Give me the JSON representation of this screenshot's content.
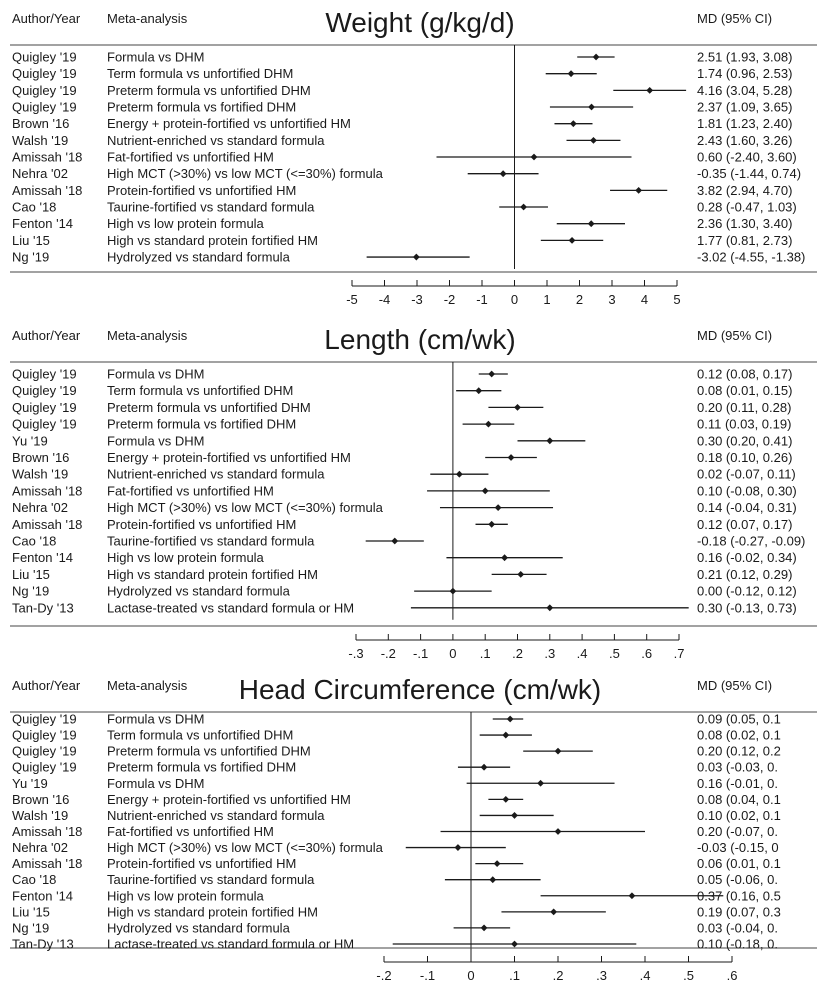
{
  "colors": {
    "ink": "#1a1a1a",
    "rule": "#444444"
  },
  "chart_data": [
    {
      "type": "forest",
      "title": "Weight (g/kg/d)",
      "col_author": "Author/Year",
      "col_analysis": "Meta-analysis",
      "col_effect": "MD (95% CI)",
      "xlim": [
        -5,
        5
      ],
      "ticks": [
        -5,
        -4,
        -3,
        -2,
        -1,
        0,
        1,
        2,
        3,
        4,
        5
      ],
      "tick_labels": [
        "-5",
        "-4",
        "-3",
        "-2",
        "-1",
        "0",
        "1",
        "2",
        "3",
        "4",
        "5"
      ],
      "rows": [
        {
          "author": "Quigley '19",
          "analysis": "Formula vs DHM",
          "md": 2.51,
          "lo": 1.93,
          "hi": 3.08,
          "label": "2.51 (1.93, 3.08)"
        },
        {
          "author": "Quigley '19",
          "analysis": "Term formula vs unfortified DHM",
          "md": 1.74,
          "lo": 0.96,
          "hi": 2.53,
          "label": "1.74 (0.96, 2.53)"
        },
        {
          "author": "Quigley '19",
          "analysis": "Preterm formula vs unfortified DHM",
          "md": 4.16,
          "lo": 3.04,
          "hi": 5.28,
          "label": "4.16 (3.04, 5.28)"
        },
        {
          "author": "Quigley '19",
          "analysis": "Preterm formula vs fortified DHM",
          "md": 2.37,
          "lo": 1.09,
          "hi": 3.65,
          "label": "2.37 (1.09, 3.65)"
        },
        {
          "author": "Brown '16",
          "analysis": "Energy + protein-fortified vs unfortified HM",
          "md": 1.81,
          "lo": 1.23,
          "hi": 2.4,
          "label": "1.81 (1.23, 2.40)"
        },
        {
          "author": "Walsh '19",
          "analysis": "Nutrient-enriched vs standard formula",
          "md": 2.43,
          "lo": 1.6,
          "hi": 3.26,
          "label": "2.43 (1.60, 3.26)"
        },
        {
          "author": "Amissah '18",
          "analysis": "Fat-fortified vs unfortified HM",
          "md": 0.6,
          "lo": -2.4,
          "hi": 3.6,
          "label": "0.60 (-2.40, 3.60)"
        },
        {
          "author": "Nehra '02",
          "analysis": "High MCT (>30%) vs low MCT (<=30%) formula",
          "md": -0.35,
          "lo": -1.44,
          "hi": 0.74,
          "label": "-0.35 (-1.44, 0.74)"
        },
        {
          "author": "Amissah '18",
          "analysis": "Protein-fortified vs unfortified HM",
          "md": 3.82,
          "lo": 2.94,
          "hi": 4.7,
          "label": "3.82 (2.94, 4.70)"
        },
        {
          "author": "Cao '18",
          "analysis": "Taurine-fortified vs standard formula",
          "md": 0.28,
          "lo": -0.47,
          "hi": 1.03,
          "label": "0.28 (-0.47, 1.03)"
        },
        {
          "author": "Fenton '14",
          "analysis": "High vs low protein formula",
          "md": 2.36,
          "lo": 1.3,
          "hi": 3.4,
          "label": "2.36 (1.30, 3.40)"
        },
        {
          "author": "Liu '15",
          "analysis": "High vs standard protein fortified HM",
          "md": 1.77,
          "lo": 0.81,
          "hi": 2.73,
          "label": "1.77 (0.81, 2.73)"
        },
        {
          "author": "Ng '19",
          "analysis": "Hydrolyzed vs standard formula",
          "md": -3.02,
          "lo": -4.55,
          "hi": -1.38,
          "label": "-3.02 (-4.55, -1.38)"
        }
      ]
    },
    {
      "type": "forest",
      "title": "Length (cm/wk)",
      "col_author": "Author/Year",
      "col_analysis": "Meta-analysis",
      "col_effect": "MD (95% CI)",
      "xlim": [
        -0.3,
        0.7
      ],
      "ticks": [
        -0.3,
        -0.2,
        -0.1,
        0,
        0.1,
        0.2,
        0.3,
        0.4,
        0.5,
        0.6,
        0.7
      ],
      "tick_labels": [
        "-.3",
        "-.2",
        "-.1",
        "0",
        ".1",
        ".2",
        ".3",
        ".4",
        ".5",
        ".6",
        ".7"
      ],
      "rows": [
        {
          "author": "Quigley '19",
          "analysis": "Formula vs DHM",
          "md": 0.12,
          "lo": 0.08,
          "hi": 0.17,
          "label": "0.12 (0.08, 0.17)"
        },
        {
          "author": "Quigley '19",
          "analysis": "Term formula vs unfortified DHM",
          "md": 0.08,
          "lo": 0.01,
          "hi": 0.15,
          "label": "0.08 (0.01, 0.15)"
        },
        {
          "author": "Quigley '19",
          "analysis": "Preterm formula vs unfortified DHM",
          "md": 0.2,
          "lo": 0.11,
          "hi": 0.28,
          "label": "0.20 (0.11, 0.28)"
        },
        {
          "author": "Quigley '19",
          "analysis": "Preterm formula vs fortified DHM",
          "md": 0.11,
          "lo": 0.03,
          "hi": 0.19,
          "label": "0.11 (0.03, 0.19)"
        },
        {
          "author": "Yu '19",
          "analysis": "Formula vs DHM",
          "md": 0.3,
          "lo": 0.2,
          "hi": 0.41,
          "label": "0.30 (0.20, 0.41)"
        },
        {
          "author": "Brown '16",
          "analysis": "Energy + protein-fortified vs unfortified HM",
          "md": 0.18,
          "lo": 0.1,
          "hi": 0.26,
          "label": "0.18 (0.10, 0.26)"
        },
        {
          "author": "Walsh '19",
          "analysis": "Nutrient-enriched vs standard formula",
          "md": 0.02,
          "lo": -0.07,
          "hi": 0.11,
          "label": "0.02 (-0.07, 0.11)"
        },
        {
          "author": "Amissah '18",
          "analysis": "Fat-fortified vs unfortified HM",
          "md": 0.1,
          "lo": -0.08,
          "hi": 0.3,
          "label": "0.10 (-0.08, 0.30)"
        },
        {
          "author": "Nehra '02",
          "analysis": "High MCT (>30%) vs low MCT (<=30%) formula",
          "md": 0.14,
          "lo": -0.04,
          "hi": 0.31,
          "label": "0.14 (-0.04, 0.31)"
        },
        {
          "author": "Amissah '18",
          "analysis": "Protein-fortified vs unfortified HM",
          "md": 0.12,
          "lo": 0.07,
          "hi": 0.17,
          "label": "0.12 (0.07, 0.17)"
        },
        {
          "author": "Cao '18",
          "analysis": "Taurine-fortified vs standard formula",
          "md": -0.18,
          "lo": -0.27,
          "hi": -0.09,
          "label": "-0.18 (-0.27, -0.09)"
        },
        {
          "author": "Fenton '14",
          "analysis": "High vs low protein formula",
          "md": 0.16,
          "lo": -0.02,
          "hi": 0.34,
          "label": "0.16 (-0.02, 0.34)"
        },
        {
          "author": "Liu '15",
          "analysis": "High vs standard protein fortified HM",
          "md": 0.21,
          "lo": 0.12,
          "hi": 0.29,
          "label": "0.21 (0.12, 0.29)"
        },
        {
          "author": "Ng '19",
          "analysis": "Hydrolyzed vs standard formula",
          "md": 0.0,
          "lo": -0.12,
          "hi": 0.12,
          "label": "0.00 (-0.12, 0.12)"
        },
        {
          "author": "Tan-Dy '13",
          "analysis": "Lactase-treated vs standard formula or HM",
          "md": 0.3,
          "lo": -0.13,
          "hi": 0.73,
          "label": "0.30 (-0.13, 0.73)"
        }
      ]
    },
    {
      "type": "forest",
      "title": "Head Circumference (cm/wk)",
      "col_author": "Author/Year",
      "col_analysis": "Meta-analysis",
      "col_effect": "MD (95% CI)",
      "xlim": [
        -0.2,
        0.6
      ],
      "ticks": [
        -0.2,
        -0.1,
        0,
        0.1,
        0.2,
        0.3,
        0.4,
        0.5,
        0.6
      ],
      "tick_labels": [
        "-.2",
        "-.1",
        "0",
        ".1",
        ".2",
        ".3",
        ".4",
        ".5",
        ".6"
      ],
      "rows": [
        {
          "author": "Quigley '19",
          "analysis": "Formula vs DHM",
          "md": 0.09,
          "lo": 0.05,
          "hi": 0.12,
          "label": "0.09 (0.05, 0.1"
        },
        {
          "author": "Quigley '19",
          "analysis": "Term formula vs unfortified DHM",
          "md": 0.08,
          "lo": 0.02,
          "hi": 0.14,
          "label": "0.08 (0.02, 0.1"
        },
        {
          "author": "Quigley '19",
          "analysis": "Preterm formula vs unfortified DHM",
          "md": 0.2,
          "lo": 0.12,
          "hi": 0.28,
          "label": "0.20 (0.12, 0.2"
        },
        {
          "author": "Quigley '19",
          "analysis": "Preterm formula vs fortified DHM",
          "md": 0.03,
          "lo": -0.03,
          "hi": 0.09,
          "label": "0.03 (-0.03, 0."
        },
        {
          "author": "Yu '19",
          "analysis": "Formula vs DHM",
          "md": 0.16,
          "lo": -0.01,
          "hi": 0.33,
          "label": "0.16 (-0.01, 0."
        },
        {
          "author": "Brown '16",
          "analysis": "Energy + protein-fortified vs unfortified HM",
          "md": 0.08,
          "lo": 0.04,
          "hi": 0.12,
          "label": "0.08 (0.04, 0.1"
        },
        {
          "author": "Walsh '19",
          "analysis": "Nutrient-enriched vs standard formula",
          "md": 0.1,
          "lo": 0.02,
          "hi": 0.19,
          "label": "0.10 (0.02, 0.1"
        },
        {
          "author": "Amissah '18",
          "analysis": "Fat-fortified vs unfortified HM",
          "md": 0.2,
          "lo": -0.07,
          "hi": 0.4,
          "label": "0.20 (-0.07, 0."
        },
        {
          "author": "Nehra '02",
          "analysis": "High MCT (>30%) vs low MCT (<=30%) formula",
          "md": -0.03,
          "lo": -0.15,
          "hi": 0.08,
          "label": "-0.03 (-0.15, 0"
        },
        {
          "author": "Amissah '18",
          "analysis": "Protein-fortified vs unfortified HM",
          "md": 0.06,
          "lo": 0.01,
          "hi": 0.12,
          "label": "0.06 (0.01, 0.1"
        },
        {
          "author": "Cao '18",
          "analysis": "Taurine-fortified vs standard formula",
          "md": 0.05,
          "lo": -0.06,
          "hi": 0.16,
          "label": "0.05 (-0.06, 0."
        },
        {
          "author": "Fenton '14",
          "analysis": "High vs low protein formula",
          "md": 0.37,
          "lo": 0.16,
          "hi": 0.58,
          "label": "0.37 (0.16, 0.5"
        },
        {
          "author": "Liu '15",
          "analysis": "High vs standard protein fortified HM",
          "md": 0.19,
          "lo": 0.07,
          "hi": 0.31,
          "label": "0.19 (0.07, 0.3"
        },
        {
          "author": "Ng '19",
          "analysis": "Hydrolyzed vs standard formula",
          "md": 0.03,
          "lo": -0.04,
          "hi": 0.09,
          "label": "0.03 (-0.04, 0."
        },
        {
          "author": "Tan-Dy '13",
          "analysis": "Lactase-treated vs standard formula or HM",
          "md": 0.1,
          "lo": -0.18,
          "hi": 0.38,
          "label": "0.10 (-0.18, 0."
        }
      ]
    }
  ]
}
